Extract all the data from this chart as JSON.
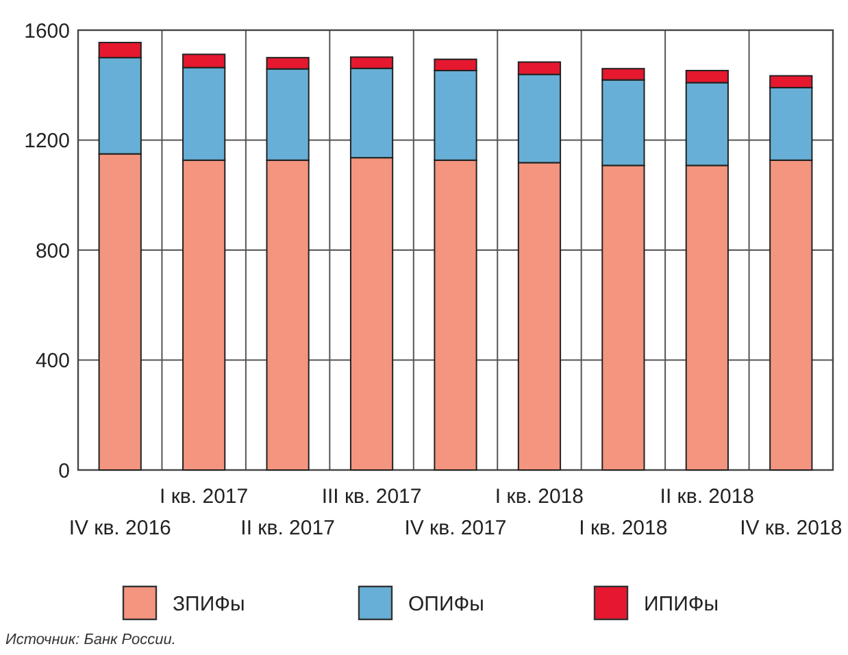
{
  "chart_data": {
    "type": "bar",
    "stacked": true,
    "categories": [
      "IV кв. 2016",
      "I кв. 2017",
      "II кв. 2017",
      "III кв. 2017",
      "IV кв. 2017",
      "I кв. 2018",
      "I кв. 2018",
      "II кв. 2018",
      "IV кв. 2018"
    ],
    "series": [
      {
        "name": "ЗПИФы",
        "color": "#f4957f",
        "values": [
          1150,
          1127,
          1127,
          1136,
          1127,
          1118,
          1108,
          1108,
          1127
        ]
      },
      {
        "name": "ОПИФы",
        "color": "#67afd6",
        "values": [
          350,
          337,
          332,
          325,
          326,
          321,
          311,
          301,
          264
        ]
      },
      {
        "name": "ИПИФы",
        "color": "#e5182f",
        "values": [
          55,
          48,
          41,
          41,
          41,
          45,
          41,
          44,
          43
        ]
      }
    ],
    "ylim": [
      0,
      1600
    ],
    "yticks": [
      0,
      400,
      800,
      1200,
      1600
    ],
    "grid": true,
    "legend": "bottom",
    "annotations": [
      "Источник: Банк России."
    ]
  }
}
